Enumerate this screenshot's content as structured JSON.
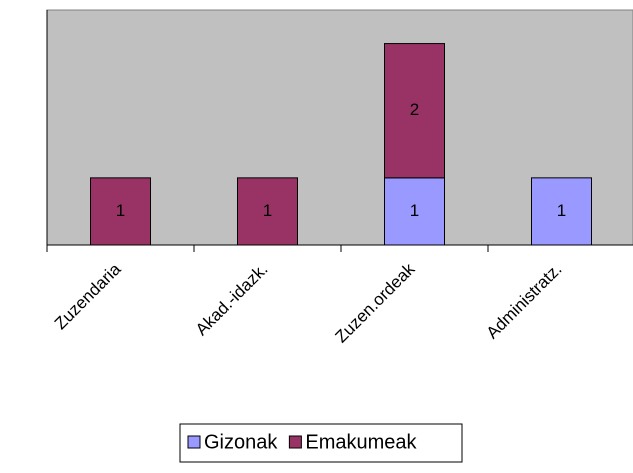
{
  "chart_data": {
    "type": "stacked_bar",
    "categories": [
      "Zuzendaria",
      "Akad.-idazk.",
      "Zuzen.ordeak",
      "Administratz."
    ],
    "series": [
      {
        "name": "Gizonak",
        "color": "#9999ff",
        "values": [
          null,
          null,
          1,
          1
        ]
      },
      {
        "name": "Emakumeak",
        "color": "#993366",
        "values": [
          1,
          1,
          2,
          null
        ]
      }
    ],
    "ylim": [
      0,
      3.5
    ],
    "plot_background": "#c0c0c0"
  }
}
